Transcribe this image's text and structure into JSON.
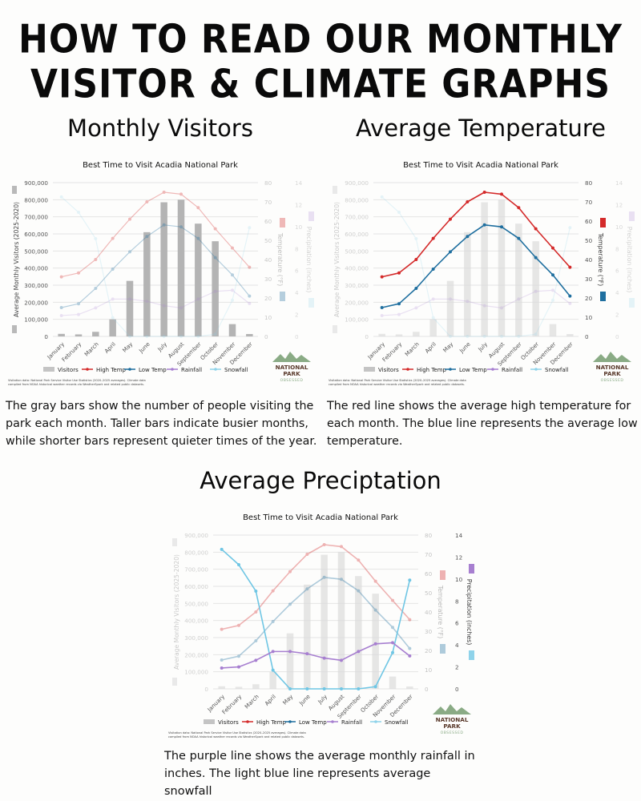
{
  "header": {
    "title_line1": "HOW TO READ OUR MONTHLY",
    "title_line2": "VISITOR & CLIMATE GRAPHS"
  },
  "sections": [
    {
      "title": "Monthly Visitors",
      "focus": "visitors",
      "description": "The gray bars show the number of people visiting the park each month. Taller bars indicate busier months, while shorter bars represent quieter times of the year."
    },
    {
      "title": "Average Temperature",
      "focus": "temperature",
      "description": "The red line shows the average high temperature for each month. The blue line represents the average low temperature."
    },
    {
      "title": "Average Preciptation",
      "focus": "precipitation",
      "description": "The purple line shows the average monthly rainfall in inches. The light blue line represents average snowfall"
    }
  ],
  "logo": {
    "line1": "NATIONAL",
    "line2": "PARK",
    "line3": "OBSESSED"
  },
  "colors": {
    "visitors": "#b9b9b9",
    "high_temp": "#d42a2a",
    "low_temp": "#1f6f9f",
    "rainfall": "#a77fd0",
    "snowfall": "#8fd3ea",
    "grid": "#e4e4e4",
    "logo_mountain": "#8aab85",
    "logo_text": "#5a3a2c"
  },
  "chart_data": {
    "type": "bar+line",
    "title": "Best Time to Visit Acadia National Park",
    "categories": [
      "January",
      "February",
      "March",
      "April",
      "May",
      "June",
      "July",
      "August",
      "September",
      "October",
      "November",
      "December"
    ],
    "series": [
      {
        "name": "Visitors",
        "type": "bar",
        "axis": "left",
        "values": [
          15000,
          12000,
          27000,
          100000,
          325000,
          610000,
          785000,
          800000,
          660000,
          557000,
          72000,
          14000
        ]
      },
      {
        "name": "High Temp",
        "type": "line",
        "axis": "temperature",
        "values": [
          31,
          33,
          40,
          51,
          61,
          70,
          75,
          74,
          67,
          56,
          46,
          36
        ]
      },
      {
        "name": "Low Temp",
        "type": "line",
        "axis": "temperature",
        "values": [
          15,
          17,
          25,
          35,
          44,
          52,
          58,
          57,
          51,
          41,
          32,
          21
        ]
      },
      {
        "name": "Rainfall",
        "type": "line",
        "axis": "precipitation",
        "values": [
          1.9,
          2.0,
          2.6,
          3.4,
          3.4,
          3.2,
          2.8,
          2.6,
          3.4,
          4.1,
          4.2,
          3.0
        ]
      },
      {
        "name": "Snowfall",
        "type": "line",
        "axis": "precipitation",
        "values": [
          12.7,
          11.3,
          8.9,
          1.7,
          0,
          0,
          0,
          0,
          0,
          0.2,
          3.3,
          9.9
        ]
      }
    ],
    "axes": {
      "left": {
        "label": "Average Monthly Visitors (2025-2020)",
        "range": [
          0,
          900000
        ],
        "ticks": [
          "0",
          "100,000",
          "200,000",
          "300,000",
          "400,000",
          "500,000",
          "600,000",
          "700,000",
          "800,000",
          "900,000"
        ]
      },
      "temperature": {
        "label": "Temperature (°F)",
        "range": [
          0,
          80
        ],
        "ticks": [
          "0",
          "10",
          "20",
          "30",
          "40",
          "50",
          "60",
          "70",
          "80"
        ]
      },
      "precipitation": {
        "label": "Precipitation (inches)",
        "range": [
          0,
          14
        ],
        "ticks": [
          "0",
          "2",
          "4",
          "6",
          "8",
          "10",
          "12",
          "14"
        ]
      }
    },
    "legend": [
      "Visitors",
      "High Temp",
      "Low Temp",
      "Rainfall",
      "Snowfall"
    ],
    "legend_position": "bottom",
    "grid": true,
    "source_note_line1": "Visitation data: National Park Service Visitor Use Statistics (2020–2025 averages). Climate data",
    "source_note_line2": "compiled from NOAA historical weather records via WeatherSpark and related public datasets."
  }
}
